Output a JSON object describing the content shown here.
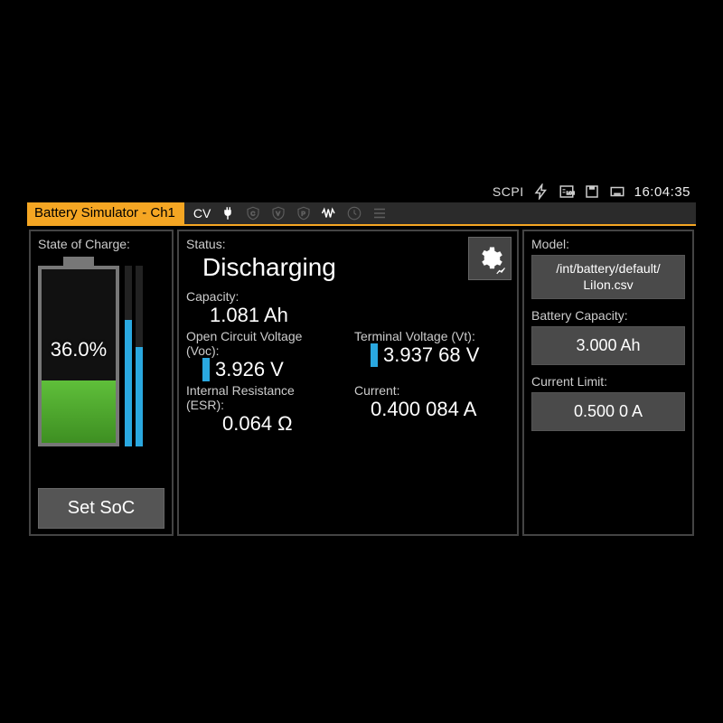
{
  "statusbar": {
    "scpi_label": "SCPI",
    "time": "16:04:35"
  },
  "titlebar": {
    "title": "Battery Simulator - Ch1",
    "mode": "CV"
  },
  "colors": {
    "accent": "#f5a623",
    "panel_border": "#444444",
    "button_bg": "#555555",
    "valuebox_bg": "#4a4a4a",
    "battery_fill_top": "#5fbf3a",
    "battery_fill_bottom": "#3e8f22",
    "bar_fill": "#2aa8e0",
    "text_muted": "#cccccc",
    "background": "#000000"
  },
  "soc": {
    "label": "State of Charge:",
    "percent_text": "36.0%",
    "percent_value": 36.0,
    "bar1_pct": 70,
    "bar2_pct": 55,
    "set_button": "Set SoC"
  },
  "status": {
    "label": "Status:",
    "value": "Discharging"
  },
  "capacity": {
    "label": "Capacity:",
    "value": "1.081 Ah"
  },
  "voc": {
    "label": "Open Circuit Voltage (Voc):",
    "value": "3.926 V"
  },
  "vt": {
    "label": "Terminal Voltage (Vt):",
    "value": "3.937 68 V"
  },
  "esr": {
    "label": "Internal Resistance (ESR):",
    "value": "0.064 Ω"
  },
  "current": {
    "label": "Current:",
    "value": "0.400 084 A"
  },
  "model": {
    "label": "Model:",
    "path_line1": "/int/battery/default/",
    "path_line2": "LiIon.csv"
  },
  "battery_capacity": {
    "label": "Battery Capacity:",
    "value": "3.000 Ah"
  },
  "current_limit": {
    "label": "Current Limit:",
    "value": "0.500 0 A"
  }
}
